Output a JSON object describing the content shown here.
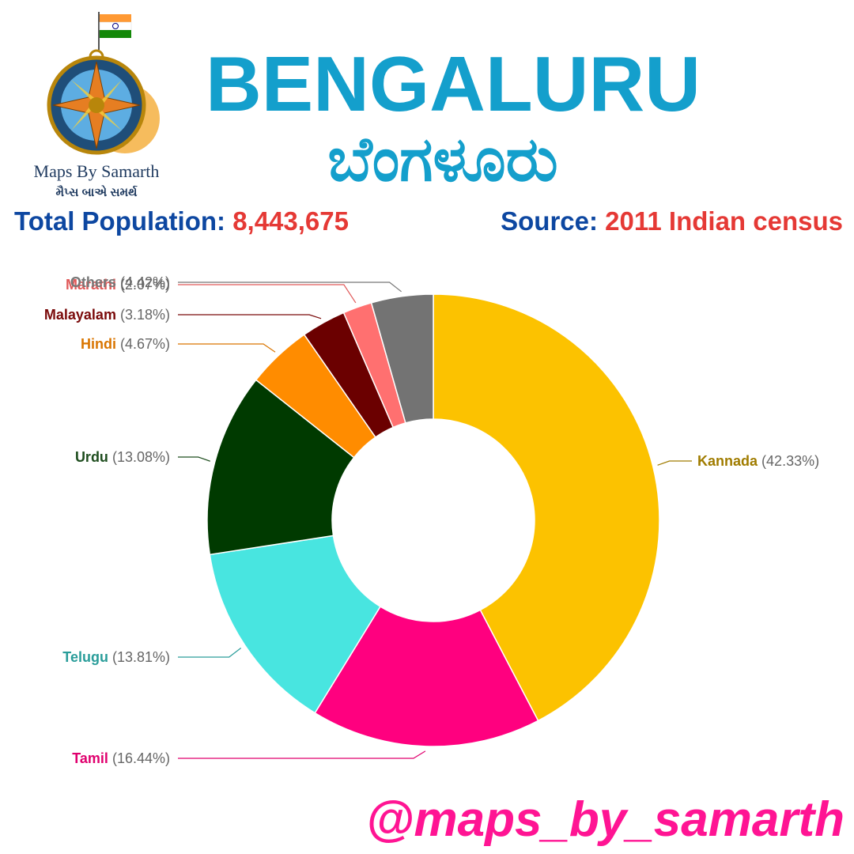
{
  "header": {
    "logo_title": "Maps By Samarth",
    "logo_subtitle": "મૈપ્સ બાએ સમર્થ",
    "population_label": "Total Population:",
    "population": "8,443,675",
    "source_label": "Source:",
    "source": "2011 Indian census"
  },
  "chart_data": {
    "type": "donut",
    "title": "BENGALURU",
    "subtitle": "ಬೆಂಗಳೂರು",
    "categories": [
      "Kannada",
      "Tamil",
      "Telugu",
      "Urdu",
      "Hindi",
      "Malayalam",
      "Marathi",
      "Others"
    ],
    "values": [
      42.33,
      16.44,
      13.81,
      13.08,
      4.67,
      3.18,
      2.07,
      4.42
    ],
    "value_labels": [
      "(42.33%)",
      "(16.44%)",
      "(13.81%)",
      "(13.08%)",
      "(4.67%)",
      "(3.18%)",
      "(2.07%)",
      "(4.42%)"
    ],
    "colors": [
      "#fcc200",
      "#ff007f",
      "#48e5e0",
      "#003a00",
      "#ff8c00",
      "#6b0000",
      "#ff7070",
      "#737373"
    ],
    "label_colors": [
      "#a07c00",
      "#e0006e",
      "#2a9d9a",
      "#1e4d1e",
      "#d97500",
      "#7a0a0a",
      "#e05a5a",
      "#777777"
    ]
  },
  "footer": {
    "handle": "@maps_by_samarth"
  }
}
